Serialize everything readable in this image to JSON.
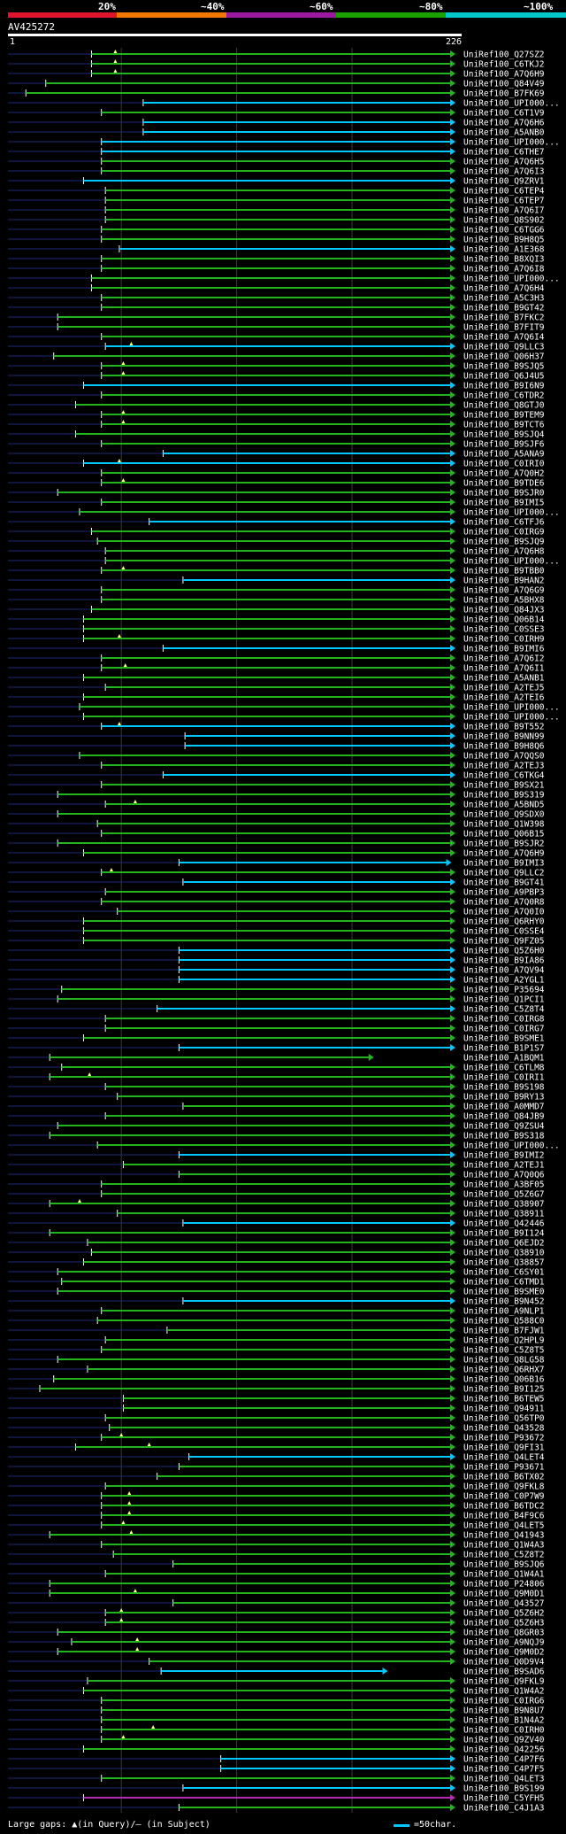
{
  "legend": {
    "labels": [
      "20%",
      "~40%",
      "~60%",
      "~80%",
      "~100%"
    ],
    "colors": [
      "#e0142c",
      "#f07800",
      "#9b1aa0",
      "#1aa000",
      "#00c8c8"
    ]
  },
  "query": {
    "id": "AV425272",
    "start": "1",
    "end": "226"
  },
  "footer": {
    "gap_label": "Large gaps: ▲(in Query)/— (in Subject)",
    "scale_label": "=50char."
  },
  "colors": {
    "hit_green": "#22b41e",
    "hit_cyan": "#00c8ff",
    "hit_magenta": "#b428b4",
    "unaligned": "#1c2878",
    "grid": "#3c3c3c"
  },
  "chart_data": {
    "type": "alignment-hits",
    "query_length": 226,
    "hits": [
      [
        "UniRef100_Q27SZ2",
        43,
        226,
        "g",
        55
      ],
      [
        "UniRef100_C6TKJ2",
        43,
        226,
        "g",
        55
      ],
      [
        "UniRef100_A7Q6H9",
        43,
        226,
        "g",
        55
      ],
      [
        "UniRef100_Q84V49",
        20,
        226,
        "g",
        0
      ],
      [
        "UniRef100_B7FK69",
        10,
        226,
        "g",
        0
      ],
      [
        "UniRef100_UPI000...",
        69,
        226,
        "c",
        0
      ],
      [
        "UniRef100_C6T1V9",
        48,
        226,
        "g",
        0
      ],
      [
        "UniRef100_A7Q6H6",
        69,
        226,
        "c",
        0
      ],
      [
        "UniRef100_A5ANB0",
        69,
        226,
        "c",
        0
      ],
      [
        "UniRef100_UPI000...",
        48,
        226,
        "c",
        0
      ],
      [
        "UniRef100_C6THE7",
        48,
        226,
        "c",
        0
      ],
      [
        "UniRef100_A7Q6H5",
        48,
        226,
        "g",
        0
      ],
      [
        "UniRef100_A7Q6I3",
        48,
        226,
        "g",
        0
      ],
      [
        "UniRef100_Q9ZRV1",
        39,
        226,
        "c",
        0
      ],
      [
        "UniRef100_C6TEP4",
        50,
        226,
        "g",
        0
      ],
      [
        "UniRef100_C6TEP7",
        50,
        226,
        "g",
        0
      ],
      [
        "UniRef100_A7Q6I7",
        50,
        226,
        "g",
        0
      ],
      [
        "UniRef100_Q8S902",
        50,
        226,
        "g",
        0
      ],
      [
        "UniRef100_C6TGG6",
        48,
        226,
        "g",
        0
      ],
      [
        "UniRef100_B9H8Q5",
        48,
        226,
        "g",
        0
      ],
      [
        "UniRef100_A1E368",
        57,
        226,
        "c",
        0
      ],
      [
        "UniRef100_B8XQI3",
        48,
        226,
        "g",
        0
      ],
      [
        "UniRef100_A7Q6I8",
        48,
        226,
        "g",
        0
      ],
      [
        "UniRef100_UPI000...",
        43,
        226,
        "g",
        0
      ],
      [
        "UniRef100_A7Q6H4",
        43,
        226,
        "g",
        0
      ],
      [
        "UniRef100_A5C3H3",
        48,
        226,
        "g",
        0
      ],
      [
        "UniRef100_B9GT42",
        48,
        226,
        "g",
        0
      ],
      [
        "UniRef100_B7FKC2",
        26,
        226,
        "g",
        0
      ],
      [
        "UniRef100_B7FIT9",
        26,
        226,
        "g",
        0
      ],
      [
        "UniRef100_A7Q6I4",
        48,
        226,
        "g",
        0
      ],
      [
        "UniRef100_Q9LLC3",
        50,
        226,
        "c",
        63
      ],
      [
        "UniRef100_Q06H37",
        24,
        226,
        "g",
        0
      ],
      [
        "UniRef100_B9SJQ5",
        48,
        226,
        "g",
        59
      ],
      [
        "UniRef100_Q6J4U5",
        48,
        226,
        "g",
        59
      ],
      [
        "UniRef100_B9I6N9",
        39,
        226,
        "c",
        0
      ],
      [
        "UniRef100_C6TDR2",
        48,
        226,
        "g",
        0
      ],
      [
        "UniRef100_Q8GTJ0",
        35,
        226,
        "g",
        0
      ],
      [
        "UniRef100_B9TEM9",
        48,
        226,
        "g",
        59
      ],
      [
        "UniRef100_B9TCT6",
        48,
        226,
        "g",
        59
      ],
      [
        "UniRef100_B9SJQ4",
        35,
        226,
        "g",
        0
      ],
      [
        "UniRef100_B9SJF6",
        48,
        226,
        "g",
        0
      ],
      [
        "UniRef100_A5ANA9",
        79,
        226,
        "c",
        0
      ],
      [
        "UniRef100_C0IRI0",
        39,
        226,
        "c",
        57
      ],
      [
        "UniRef100_A7Q0H2",
        48,
        226,
        "g",
        0
      ],
      [
        "UniRef100_B9TDE6",
        48,
        226,
        "g",
        59
      ],
      [
        "UniRef100_B9SJR0",
        26,
        226,
        "g",
        0
      ],
      [
        "UniRef100_B9IMI5",
        48,
        226,
        "g",
        0
      ],
      [
        "UniRef100_UPI000...",
        37,
        226,
        "g",
        0
      ],
      [
        "UniRef100_C6TFJ6",
        72,
        226,
        "c",
        0
      ],
      [
        "UniRef100_C0IRG9",
        43,
        226,
        "g",
        0
      ],
      [
        "UniRef100_B9SJQ9",
        46,
        226,
        "g",
        0
      ],
      [
        "UniRef100_A7Q6H8",
        50,
        226,
        "g",
        0
      ],
      [
        "UniRef100_UPI000...",
        50,
        226,
        "g",
        0
      ],
      [
        "UniRef100_B9TBB0",
        48,
        226,
        "g",
        59
      ],
      [
        "UniRef100_B9HAN2",
        89,
        226,
        "c",
        0
      ],
      [
        "UniRef100_A7Q6G9",
        48,
        226,
        "g",
        0
      ],
      [
        "UniRef100_A5BHX8",
        48,
        226,
        "g",
        0
      ],
      [
        "UniRef100_Q84JX3",
        43,
        226,
        "g",
        0
      ],
      [
        "UniRef100_Q06B14",
        39,
        226,
        "g",
        0
      ],
      [
        "UniRef100_C0SSE3",
        39,
        226,
        "g",
        0
      ],
      [
        "UniRef100_C0IRH9",
        39,
        226,
        "g",
        57
      ],
      [
        "UniRef100_B9IMI6",
        79,
        226,
        "c",
        0
      ],
      [
        "UniRef100_A7Q6I2",
        48,
        226,
        "g",
        0
      ],
      [
        "UniRef100_A7Q6I1",
        48,
        226,
        "g",
        60
      ],
      [
        "UniRef100_A5ANB1",
        39,
        226,
        "g",
        0
      ],
      [
        "UniRef100_A2TEJ5",
        50,
        226,
        "g",
        0
      ],
      [
        "UniRef100_A2TEI6",
        39,
        226,
        "g",
        0
      ],
      [
        "UniRef100_UPI000...",
        37,
        226,
        "g",
        0
      ],
      [
        "UniRef100_UPI000...",
        39,
        226,
        "g",
        0
      ],
      [
        "UniRef100_B9T552",
        48,
        226,
        "c",
        57
      ],
      [
        "UniRef100_B9NN99",
        90,
        226,
        "c",
        0
      ],
      [
        "UniRef100_B9H8Q6",
        90,
        226,
        "c",
        0
      ],
      [
        "UniRef100_A7QQS0",
        37,
        226,
        "g",
        0
      ],
      [
        "UniRef100_A2TEJ3",
        48,
        226,
        "g",
        0
      ],
      [
        "UniRef100_C6TKG4",
        79,
        226,
        "c",
        0
      ],
      [
        "UniRef100_B9SX21",
        48,
        226,
        "g",
        0
      ],
      [
        "UniRef100_B9S319",
        26,
        226,
        "g",
        0
      ],
      [
        "UniRef100_A5BND5",
        50,
        226,
        "g",
        65
      ],
      [
        "UniRef100_Q9SDX0",
        26,
        226,
        "g",
        0
      ],
      [
        "UniRef100_Q1W398",
        46,
        226,
        "g",
        0
      ],
      [
        "UniRef100_Q06B15",
        48,
        226,
        "g",
        0
      ],
      [
        "UniRef100_B9SJR2",
        26,
        226,
        "g",
        0
      ],
      [
        "UniRef100_A7Q6H9",
        39,
        226,
        "g",
        0
      ],
      [
        "UniRef100_B9IMI3",
        87,
        224,
        "c",
        0
      ],
      [
        "UniRef100_Q9LLC2",
        48,
        226,
        "g",
        53
      ],
      [
        "UniRef100_B9GT41",
        89,
        226,
        "c",
        0
      ],
      [
        "UniRef100_A9PBP3",
        50,
        226,
        "g",
        0
      ],
      [
        "UniRef100_A7Q0R8",
        48,
        226,
        "g",
        0
      ],
      [
        "UniRef100_A7Q0I0",
        56,
        226,
        "g",
        0
      ],
      [
        "UniRef100_Q6RHY0",
        39,
        226,
        "g",
        0
      ],
      [
        "UniRef100_C0SSE4",
        39,
        226,
        "g",
        0
      ],
      [
        "UniRef100_Q9FZ05",
        39,
        226,
        "g",
        0
      ],
      [
        "UniRef100_Q5Z6H0",
        87,
        226,
        "c",
        0
      ],
      [
        "UniRef100_B9IA86",
        87,
        226,
        "c",
        0
      ],
      [
        "UniRef100_A7QV94",
        87,
        226,
        "c",
        0
      ],
      [
        "UniRef100_A2YGL1",
        87,
        226,
        "c",
        0
      ],
      [
        "UniRef100_P35694",
        28,
        226,
        "g",
        0
      ],
      [
        "UniRef100_Q1PCI1",
        26,
        226,
        "g",
        0
      ],
      [
        "UniRef100_C5Z8T4",
        76,
        226,
        "c",
        0
      ],
      [
        "UniRef100_C0IRG8",
        50,
        226,
        "g",
        0
      ],
      [
        "UniRef100_C0IRG7",
        50,
        226,
        "g",
        0
      ],
      [
        "UniRef100_B9SME1",
        39,
        226,
        "g",
        0
      ],
      [
        "UniRef100_B1P1S7",
        87,
        226,
        "c",
        0
      ],
      [
        "UniRef100_A1BQM1",
        22,
        185,
        "g",
        0
      ],
      [
        "UniRef100_C6TLM8",
        28,
        226,
        "g",
        0
      ],
      [
        "UniRef100_C0IRI1",
        22,
        226,
        "g",
        42
      ],
      [
        "UniRef100_B9S198",
        50,
        226,
        "g",
        0
      ],
      [
        "UniRef100_B9RY13",
        56,
        226,
        "g",
        0
      ],
      [
        "UniRef100_A0MMD7",
        89,
        226,
        "g",
        0
      ],
      [
        "UniRef100_Q84JB9",
        50,
        226,
        "g",
        0
      ],
      [
        "UniRef100_Q9ZSU4",
        26,
        226,
        "g",
        0
      ],
      [
        "UniRef100_B9S318",
        22,
        226,
        "g",
        0
      ],
      [
        "UniRef100_UPI000...",
        46,
        226,
        "g",
        0
      ],
      [
        "UniRef100_B9IMI2",
        87,
        226,
        "c",
        0
      ],
      [
        "UniRef100_A2TEJ1",
        59,
        226,
        "g",
        0
      ],
      [
        "UniRef100_A7Q0Q6",
        87,
        226,
        "g",
        0
      ],
      [
        "UniRef100_A3BF05",
        48,
        226,
        "g",
        0
      ],
      [
        "UniRef100_Q5Z6G7",
        48,
        226,
        "g",
        0
      ],
      [
        "UniRef100_Q38907",
        22,
        226,
        "g",
        37
      ],
      [
        "UniRef100_Q38911",
        56,
        226,
        "g",
        0
      ],
      [
        "UniRef100_Q42446",
        89,
        226,
        "c",
        0
      ],
      [
        "UniRef100_B9I124",
        22,
        226,
        "g",
        0
      ],
      [
        "UniRef100_Q6EJD2",
        41,
        226,
        "g",
        0
      ],
      [
        "UniRef100_Q38910",
        43,
        226,
        "g",
        0
      ],
      [
        "UniRef100_Q38857",
        39,
        226,
        "g",
        0
      ],
      [
        "UniRef100_C6SY01",
        26,
        226,
        "g",
        0
      ],
      [
        "UniRef100_C6TMD1",
        28,
        226,
        "g",
        0
      ],
      [
        "UniRef100_B9SME0",
        26,
        226,
        "g",
        0
      ],
      [
        "UniRef100_B9N452",
        89,
        226,
        "c",
        0
      ],
      [
        "UniRef100_A9NLP1",
        48,
        226,
        "g",
        0
      ],
      [
        "UniRef100_Q588C0",
        46,
        226,
        "g",
        0
      ],
      [
        "UniRef100_B7FJW1",
        81,
        226,
        "g",
        0
      ],
      [
        "UniRef100_Q2HPL9",
        50,
        226,
        "g",
        0
      ],
      [
        "UniRef100_C5Z8T5",
        48,
        226,
        "g",
        0
      ],
      [
        "UniRef100_Q8LG58",
        26,
        226,
        "g",
        0
      ],
      [
        "UniRef100_Q6RHX7",
        41,
        226,
        "g",
        0
      ],
      [
        "UniRef100_Q06B16",
        24,
        226,
        "g",
        0
      ],
      [
        "UniRef100_B9I125",
        17,
        226,
        "g",
        0
      ],
      [
        "UniRef100_B6TEW5",
        59,
        226,
        "g",
        0
      ],
      [
        "UniRef100_Q94911",
        59,
        226,
        "g",
        0
      ],
      [
        "UniRef100_Q56TP0",
        50,
        226,
        "g",
        0
      ],
      [
        "UniRef100_Q43528",
        52,
        226,
        "g",
        0
      ],
      [
        "UniRef100_P93672",
        48,
        226,
        "g",
        58
      ],
      [
        "UniRef100_Q9FI31",
        35,
        226,
        "g",
        72
      ],
      [
        "UniRef100_Q4LET4",
        92,
        226,
        "c",
        0
      ],
      [
        "UniRef100_P93671",
        87,
        226,
        "g",
        0
      ],
      [
        "UniRef100_B6TX02",
        76,
        226,
        "g",
        0
      ],
      [
        "UniRef100_Q9FKL8",
        50,
        226,
        "g",
        0
      ],
      [
        "UniRef100_C0P7W9",
        48,
        226,
        "g",
        62
      ],
      [
        "UniRef100_B6TDC2",
        48,
        226,
        "g",
        62
      ],
      [
        "UniRef100_B4F9C6",
        48,
        226,
        "g",
        62
      ],
      [
        "UniRef100_Q4LET5",
        48,
        226,
        "g",
        59
      ],
      [
        "UniRef100_Q41943",
        22,
        226,
        "g",
        63
      ],
      [
        "UniRef100_Q1W4A3",
        48,
        226,
        "g",
        0
      ],
      [
        "UniRef100_C5Z8T2",
        54,
        226,
        "g",
        0
      ],
      [
        "UniRef100_B9SJQ6",
        84,
        226,
        "g",
        0
      ],
      [
        "UniRef100_Q1W4A1",
        50,
        226,
        "g",
        0
      ],
      [
        "UniRef100_P24806",
        22,
        226,
        "g",
        0
      ],
      [
        "UniRef100_Q9M0D1",
        22,
        226,
        "g",
        65
      ],
      [
        "UniRef100_Q43527",
        84,
        226,
        "g",
        0
      ],
      [
        "UniRef100_Q5Z6H2",
        50,
        226,
        "g",
        58
      ],
      [
        "UniRef100_Q5Z6H3",
        50,
        226,
        "g",
        58
      ],
      [
        "UniRef100_Q8GR03",
        26,
        226,
        "g",
        0
      ],
      [
        "UniRef100_A9NQJ9",
        33,
        226,
        "g",
        66
      ],
      [
        "UniRef100_Q9M0D2",
        26,
        226,
        "g",
        66
      ],
      [
        "UniRef100_Q0D9V4",
        72,
        226,
        "g",
        0
      ],
      [
        "UniRef100_B9SAD6",
        78,
        192,
        "c",
        0
      ],
      [
        "UniRef100_Q9FKL9",
        41,
        226,
        "g",
        0
      ],
      [
        "UniRef100_Q1W4A2",
        39,
        226,
        "g",
        0
      ],
      [
        "UniRef100_C0IRG6",
        48,
        226,
        "g",
        0
      ],
      [
        "UniRef100_B9N8U7",
        48,
        226,
        "g",
        0
      ],
      [
        "UniRef100_B1N4A2",
        48,
        226,
        "g",
        0
      ],
      [
        "UniRef100_C0IRH0",
        48,
        226,
        "g",
        74
      ],
      [
        "UniRef100_Q9ZV40",
        48,
        226,
        "g",
        59
      ],
      [
        "UniRef100_Q42256",
        39,
        226,
        "g",
        0
      ],
      [
        "UniRef100_C4P7F6",
        108,
        226,
        "c",
        0
      ],
      [
        "UniRef100_C4P7F5",
        108,
        226,
        "c",
        0
      ],
      [
        "UniRef100_Q4LET3",
        48,
        226,
        "g",
        0
      ],
      [
        "UniRef100_B9S199",
        89,
        226,
        "c",
        0
      ],
      [
        "UniRef100_C5YFH5",
        39,
        226,
        "m",
        0
      ],
      [
        "UniRef100_C4J1A3",
        87,
        226,
        "g",
        0
      ]
    ]
  }
}
